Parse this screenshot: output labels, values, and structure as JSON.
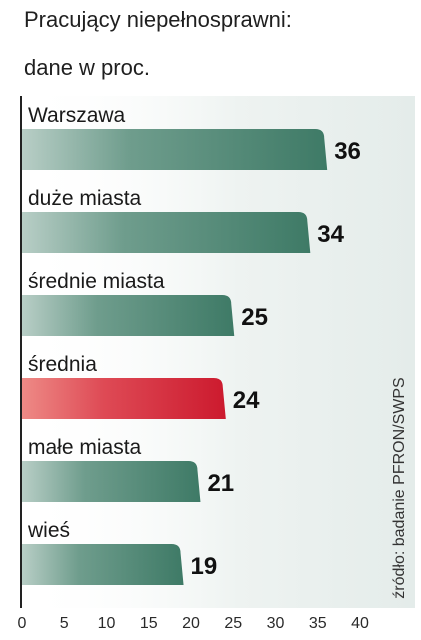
{
  "title_lines": [
    "Pracujący niepełnosprawni:",
    "dane w proc."
  ],
  "source": "źródło: badanie PFRON/SWPS",
  "colors": {
    "bar": "#3e7a66",
    "bar_highlight": "#cc1a2e",
    "axis": "#222222",
    "panel_background": "#eaf1ef"
  },
  "chart_data": {
    "type": "bar",
    "orientation": "horizontal",
    "title": "Pracujący niepełnosprawni: dane w proc.",
    "categories": [
      "Warszawa",
      "duże miasta",
      "średnie miasta",
      "średnia",
      "małe miasta",
      "wieś"
    ],
    "values": [
      36,
      34,
      25,
      24,
      21,
      19
    ],
    "highlighted_category": "średnia",
    "xlim": [
      0,
      40
    ],
    "xticks": [
      0,
      5,
      10,
      15,
      20,
      25,
      30,
      35,
      40
    ],
    "xlabel": "",
    "ylabel": "",
    "data_labels": true,
    "grid": false,
    "legend": "none"
  }
}
